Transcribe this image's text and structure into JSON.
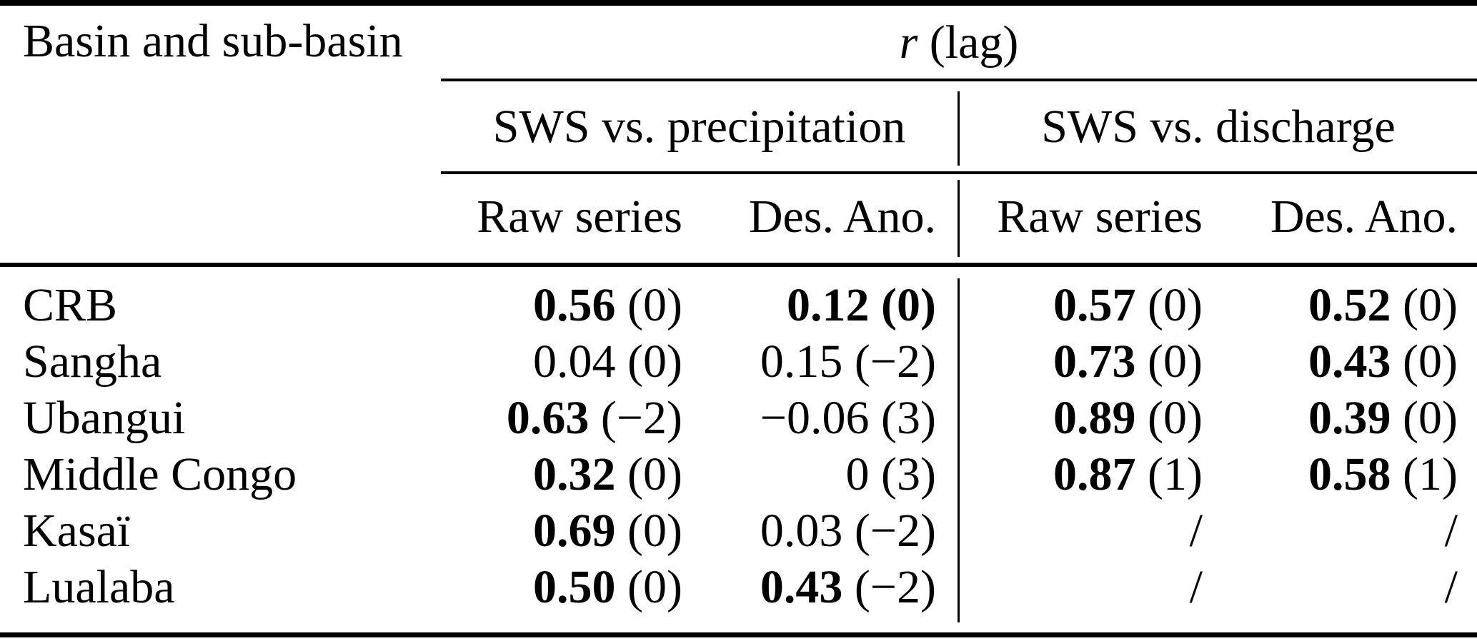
{
  "table": {
    "corner_header": "Basin and sub-basin",
    "span_header": {
      "symbol": "r",
      "suffix": "(lag)"
    },
    "groups": [
      {
        "label": "SWS vs. precipitation"
      },
      {
        "label": "SWS vs. discharge"
      }
    ],
    "sub_headers": [
      "Raw series",
      "Des. Ano.",
      "Raw series",
      "Des. Ano."
    ],
    "rows": [
      {
        "basin": "CRB",
        "cells": [
          {
            "value": "0.56",
            "lag": "(0)",
            "value_bold": true,
            "lag_bold": false
          },
          {
            "value": "0.12",
            "lag": "(0)",
            "value_bold": true,
            "lag_bold": true
          },
          {
            "value": "0.57",
            "lag": "(0)",
            "value_bold": true,
            "lag_bold": false
          },
          {
            "value": "0.52",
            "lag": "(0)",
            "value_bold": true,
            "lag_bold": false
          }
        ]
      },
      {
        "basin": "Sangha",
        "cells": [
          {
            "value": "0.04",
            "lag": "(0)",
            "value_bold": false,
            "lag_bold": false
          },
          {
            "value": "0.15",
            "lag": "(−2)",
            "value_bold": false,
            "lag_bold": false
          },
          {
            "value": "0.73",
            "lag": "(0)",
            "value_bold": true,
            "lag_bold": false
          },
          {
            "value": "0.43",
            "lag": "(0)",
            "value_bold": true,
            "lag_bold": false
          }
        ]
      },
      {
        "basin": "Ubangui",
        "cells": [
          {
            "value": "0.63",
            "lag": "(−2)",
            "value_bold": true,
            "lag_bold": false
          },
          {
            "value": "−0.06",
            "lag": "(3)",
            "value_bold": false,
            "lag_bold": false
          },
          {
            "value": "0.89",
            "lag": "(0)",
            "value_bold": true,
            "lag_bold": false
          },
          {
            "value": "0.39",
            "lag": "(0)",
            "value_bold": true,
            "lag_bold": false
          }
        ]
      },
      {
        "basin": "Middle Congo",
        "cells": [
          {
            "value": "0.32",
            "lag": "(0)",
            "value_bold": true,
            "lag_bold": false
          },
          {
            "value": "0",
            "lag": "(3)",
            "value_bold": false,
            "lag_bold": false
          },
          {
            "value": "0.87",
            "lag": "(1)",
            "value_bold": true,
            "lag_bold": false
          },
          {
            "value": "0.58",
            "lag": "(1)",
            "value_bold": true,
            "lag_bold": false
          }
        ]
      },
      {
        "basin": "Kasaï",
        "cells": [
          {
            "value": "0.69",
            "lag": "(0)",
            "value_bold": true,
            "lag_bold": false
          },
          {
            "value": "0.03",
            "lag": "(−2)",
            "value_bold": false,
            "lag_bold": false
          },
          {
            "value": "/",
            "lag": "",
            "value_bold": false,
            "lag_bold": false
          },
          {
            "value": "/",
            "lag": "",
            "value_bold": false,
            "lag_bold": false
          }
        ]
      },
      {
        "basin": "Lualaba",
        "cells": [
          {
            "value": "0.50",
            "lag": "(0)",
            "value_bold": true,
            "lag_bold": false
          },
          {
            "value": "0.43",
            "lag": "(−2)",
            "value_bold": true,
            "lag_bold": false
          },
          {
            "value": "/",
            "lag": "",
            "value_bold": false,
            "lag_bold": false
          },
          {
            "value": "/",
            "lag": "",
            "value_bold": false,
            "lag_bold": false
          }
        ]
      }
    ],
    "colors": {
      "text": "#000000",
      "background": "#ffffff",
      "rule": "#000000"
    }
  }
}
